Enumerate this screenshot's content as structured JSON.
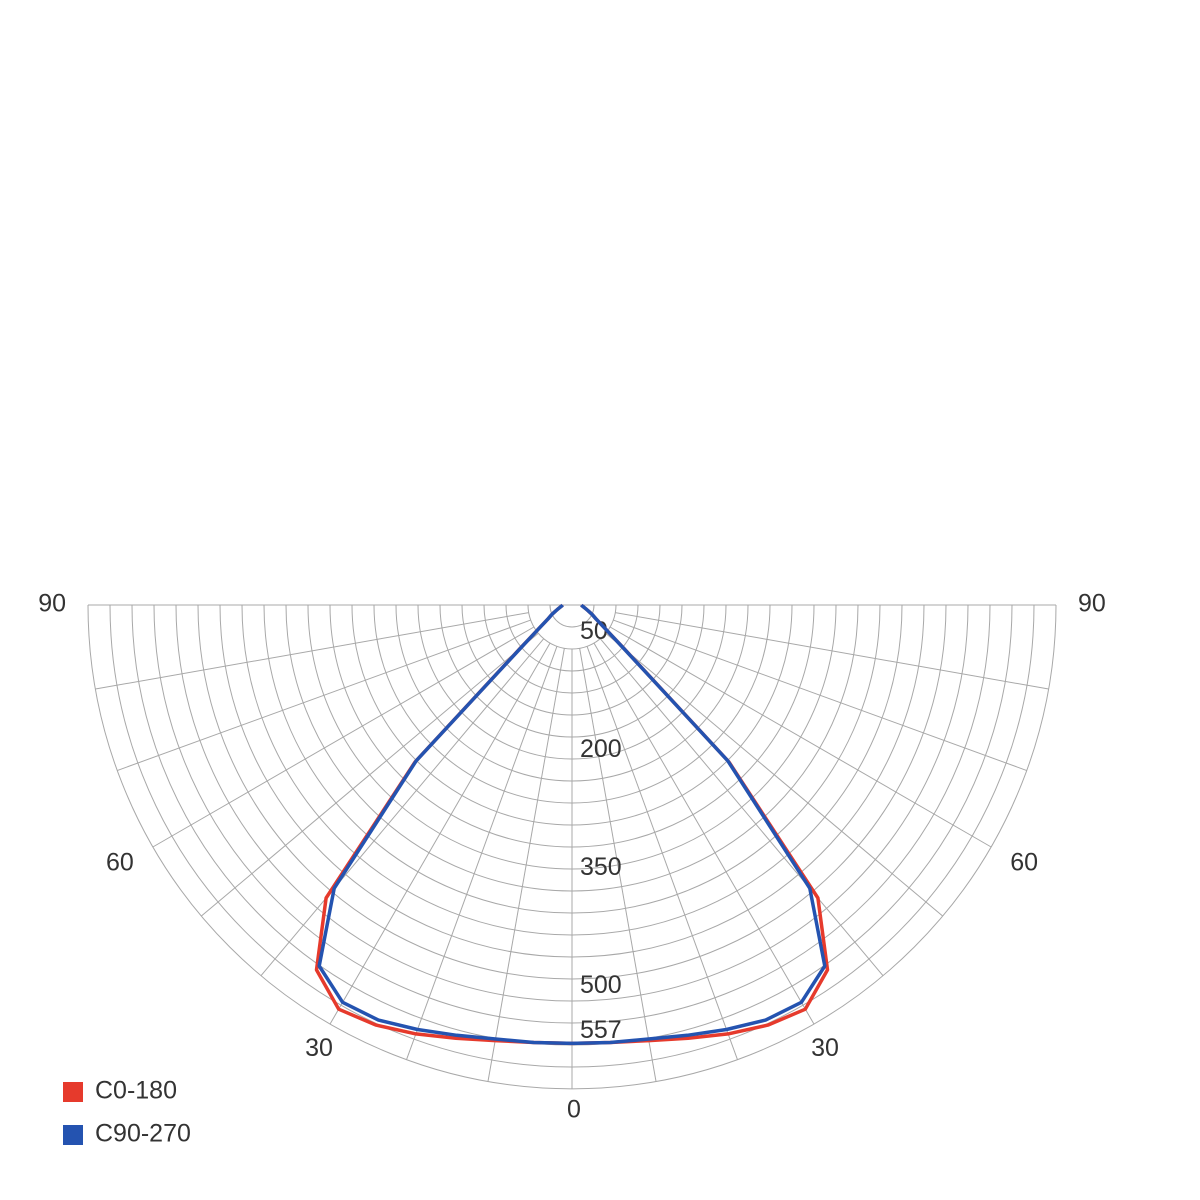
{
  "chart_data": {
    "type": "polar",
    "gamma": [
      0,
      5,
      10,
      15,
      20,
      25,
      30,
      35,
      40,
      45,
      50,
      55,
      60,
      65,
      70,
      75,
      80,
      85,
      90
    ],
    "series": [
      {
        "name": "C0-180",
        "color": "#e63a2c",
        "values": [
          557,
          558,
          562,
          570,
          580,
          589,
          593,
          566,
          486,
          282,
          87,
          50,
          35,
          28,
          22,
          18,
          15,
          13,
          12
        ]
      },
      {
        "name": "C90-270",
        "color": "#2453b0",
        "values": [
          557,
          558,
          560,
          566,
          574,
          582,
          583,
          560,
          470,
          280,
          86,
          50,
          35,
          28,
          22,
          18,
          15,
          13,
          12
        ]
      }
    ],
    "rlim": [
      0,
      615
    ],
    "rticks": [
      50,
      200,
      350,
      500,
      557
    ],
    "angle_ticks": [
      0,
      30,
      60,
      90
    ]
  }
}
